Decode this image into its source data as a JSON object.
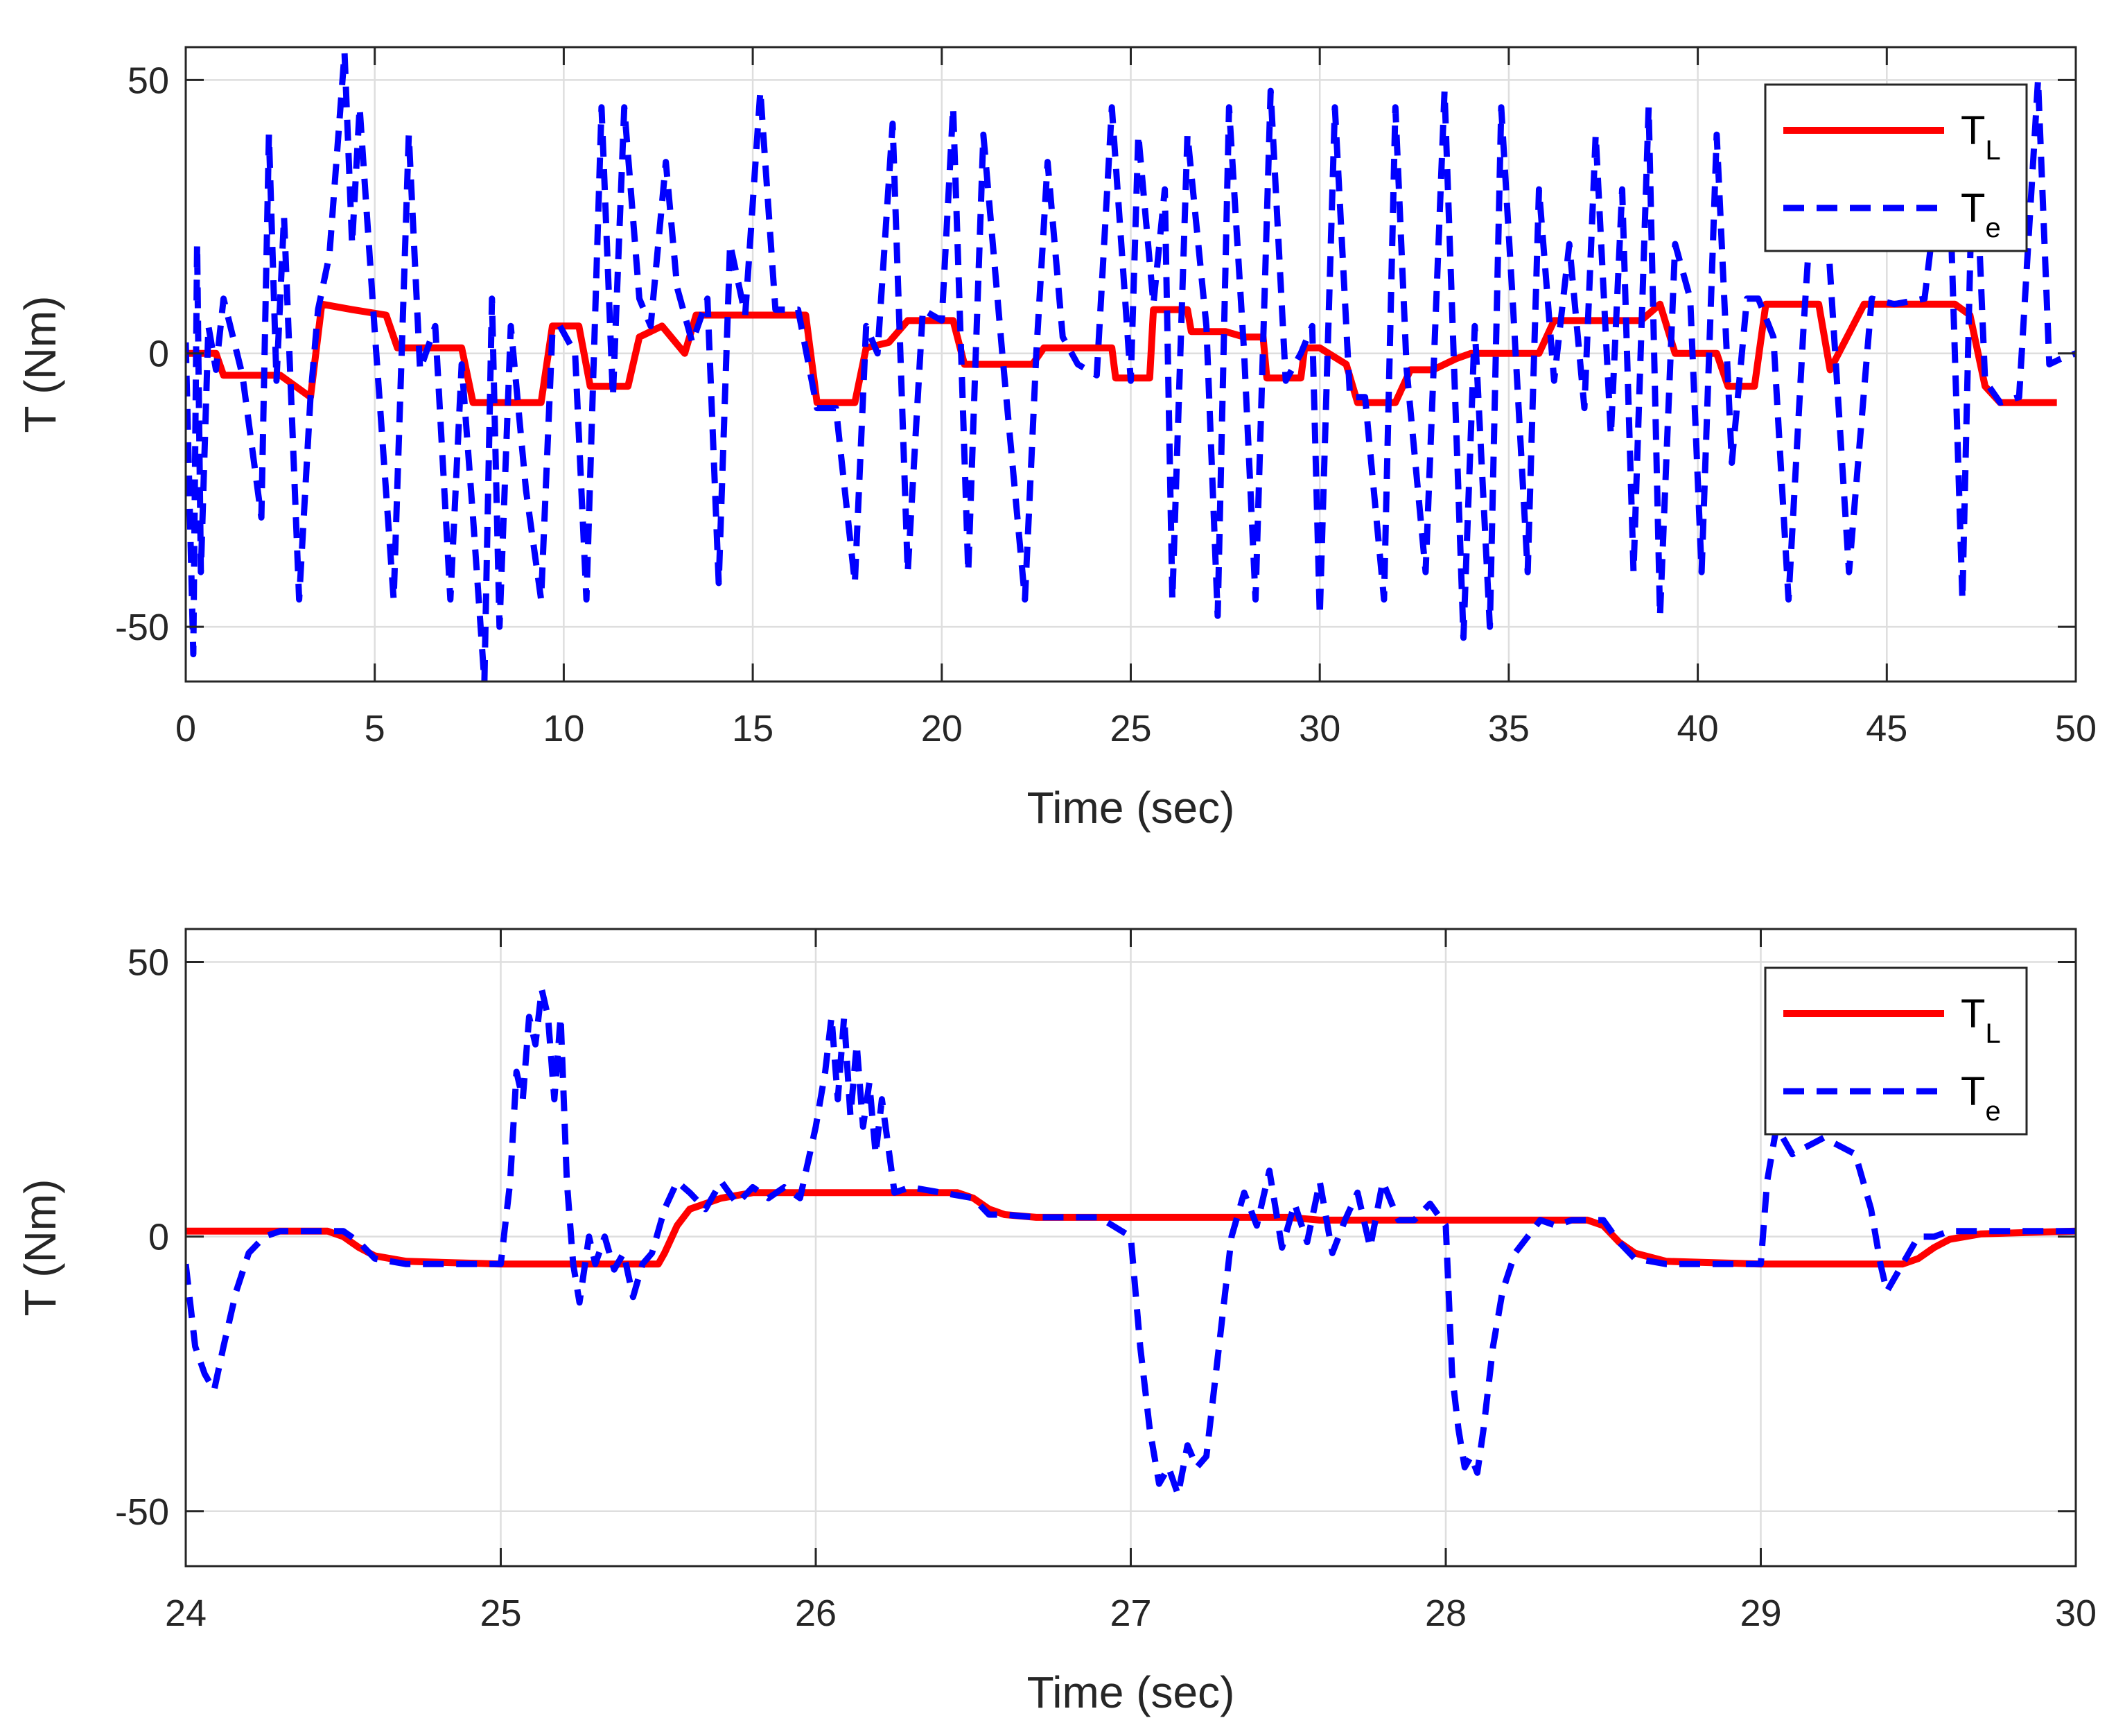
{
  "chart_data": [
    {
      "type": "line",
      "xlabel": "Time (sec)",
      "ylabel": "T (Nm)",
      "xlim": [
        0,
        50
      ],
      "ylim": [
        -60,
        56
      ],
      "xticks": [
        0,
        5,
        10,
        15,
        20,
        25,
        30,
        35,
        40,
        45,
        50
      ],
      "yticks": [
        -50,
        0,
        50
      ],
      "xtick_labels": [
        "0",
        "5",
        "10",
        "15",
        "20",
        "25",
        "30",
        "35",
        "40",
        "45",
        "50"
      ],
      "ytick_labels": [
        "-50",
        "0",
        "50"
      ],
      "grid": true,
      "legend_position": "top-right",
      "series": [
        {
          "name": "T_L",
          "legend_main": "T",
          "legend_sub": "L",
          "color": "#ff0000",
          "style": "solid",
          "x": [
            0,
            0.8,
            1.0,
            2.5,
            3.3,
            3.6,
            4.4,
            5.3,
            5.6,
            7.3,
            7.6,
            9.4,
            9.7,
            10.4,
            10.7,
            11.7,
            12.0,
            12.6,
            13.2,
            13.5,
            16.4,
            16.7,
            17.7,
            18.0,
            18.6,
            19.1,
            20.3,
            20.6,
            22.4,
            22.7,
            23.8,
            24.0,
            24.5,
            24.6,
            25.5,
            25.6,
            26.5,
            26.6,
            27.5,
            28.0,
            28.5,
            28.6,
            29.5,
            29.6,
            30.0,
            30.7,
            31.0,
            32.0,
            32.4,
            33.0,
            33.6,
            34.0,
            35.8,
            36.2,
            38.5,
            39.0,
            39.4,
            40.5,
            40.8,
            41.5,
            41.8,
            43.2,
            43.5,
            44.4,
            46.8,
            47.2,
            47.6,
            48.0,
            49.5
          ],
          "y": [
            0,
            0,
            -4,
            -4,
            -8,
            9,
            8,
            7,
            1,
            1,
            -9,
            -9,
            5,
            5,
            -6,
            -6,
            3,
            5,
            0,
            7,
            7,
            -9,
            -9,
            1,
            2,
            6,
            6,
            -2,
            -2,
            1,
            1,
            1,
            1,
            -4.5,
            -4.5,
            8,
            8,
            4,
            4,
            3,
            3,
            -4.5,
            -4.5,
            1,
            1,
            -2,
            -9,
            -9,
            -3,
            -3,
            -1,
            0,
            0,
            6,
            6,
            9,
            0,
            0,
            -6,
            -6,
            9,
            9,
            -3,
            9,
            9,
            7,
            -6,
            -9,
            -9
          ]
        },
        {
          "name": "T_e",
          "legend_main": "T",
          "legend_sub": "e",
          "color": "#0000ff",
          "style": "dashed",
          "x": [
            0,
            0.2,
            0.3,
            0.4,
            0.6,
            0.8,
            1.0,
            1.5,
            2.0,
            2.2,
            2.4,
            2.6,
            3.0,
            3.3,
            3.5,
            3.8,
            4.2,
            4.4,
            4.6,
            5.0,
            5.5,
            5.9,
            6.2,
            6.6,
            7.0,
            7.3,
            7.6,
            7.9,
            8.1,
            8.3,
            8.6,
            9.0,
            9.4,
            9.7,
            9.9,
            10.3,
            10.6,
            11.0,
            11.3,
            11.6,
            12.0,
            12.3,
            12.7,
            13.0,
            13.4,
            13.8,
            14.1,
            14.4,
            14.8,
            15.2,
            15.6,
            16.2,
            16.7,
            17.2,
            17.7,
            18.0,
            18.3,
            18.7,
            19.1,
            19.5,
            20.0,
            20.3,
            20.7,
            21.1,
            21.6,
            22.2,
            22.5,
            22.8,
            23.2,
            23.6,
            24.1,
            24.5,
            25.0,
            25.2,
            25.6,
            25.9,
            26.1,
            26.5,
            27.0,
            27.3,
            27.6,
            28.0,
            28.3,
            28.7,
            29.1,
            29.5,
            29.8,
            30.0,
            30.4,
            30.8,
            31.2,
            31.7,
            32.0,
            32.3,
            32.8,
            33.3,
            33.8,
            34.1,
            34.5,
            34.8,
            35.1,
            35.5,
            35.8,
            36.2,
            36.6,
            37.0,
            37.3,
            37.7,
            38.0,
            38.3,
            38.7,
            39.0,
            39.4,
            39.8,
            40.1,
            40.5,
            40.9,
            41.3,
            41.6,
            42.0,
            42.4,
            42.8,
            43.2,
            43.6,
            44.0,
            44.6,
            45.2,
            46.0,
            46.6,
            47.0,
            47.3,
            47.6,
            48.0,
            48.5,
            49.0,
            49.3,
            49.6,
            50.0
          ],
          "y": [
            2,
            -55,
            20,
            -40,
            5,
            -3,
            10,
            -4,
            -30,
            40,
            -5,
            25,
            -45,
            -8,
            8,
            18,
            55,
            20,
            45,
            4,
            -45,
            40,
            -3,
            5,
            -45,
            -2,
            -30,
            -60,
            10,
            -50,
            5,
            -25,
            -45,
            4,
            5,
            0,
            -45,
            45,
            -8,
            45,
            10,
            5,
            35,
            12,
            2,
            10,
            -42,
            20,
            7,
            48,
            8,
            8,
            -10,
            -10,
            -42,
            5,
            0,
            42,
            -40,
            8,
            6,
            45,
            -40,
            40,
            0,
            -45,
            0,
            35,
            3,
            -2,
            -4,
            45,
            -5,
            40,
            9,
            30,
            -45,
            40,
            5,
            -48,
            45,
            0,
            -45,
            48,
            -5,
            0,
            5,
            -48,
            45,
            -8,
            -8,
            -45,
            45,
            -3,
            -40,
            48,
            -52,
            5,
            -50,
            45,
            10,
            -40,
            30,
            -5,
            20,
            -10,
            40,
            -15,
            30,
            -40,
            45,
            -48,
            20,
            10,
            -40,
            40,
            -20,
            10,
            10,
            3,
            -45,
            5,
            48,
            4,
            -40,
            10,
            9,
            10,
            45,
            -45,
            45,
            -5,
            -9,
            -8,
            50,
            -2,
            -1,
            0
          ]
        }
      ]
    },
    {
      "type": "line",
      "xlabel": "Time (sec)",
      "ylabel": "T (Nm)",
      "xlim": [
        24,
        30
      ],
      "ylim": [
        -60,
        56
      ],
      "xticks": [
        24,
        25,
        26,
        27,
        28,
        29,
        30
      ],
      "yticks": [
        -50,
        0,
        50
      ],
      "xtick_labels": [
        "24",
        "25",
        "26",
        "27",
        "28",
        "29",
        "30"
      ],
      "ytick_labels": [
        "-50",
        "0",
        "50"
      ],
      "grid": true,
      "legend_position": "top-right",
      "series": [
        {
          "name": "T_L",
          "legend_main": "T",
          "legend_sub": "L",
          "color": "#ff0000",
          "style": "solid",
          "x": [
            24.0,
            24.45,
            24.5,
            24.55,
            24.6,
            24.7,
            25.0,
            25.5,
            25.52,
            25.56,
            25.6,
            25.7,
            25.8,
            26.0,
            26.45,
            26.5,
            26.55,
            26.6,
            26.7,
            27.0,
            27.5,
            27.6,
            28.0,
            28.45,
            28.5,
            28.55,
            28.6,
            28.7,
            29.0,
            29.45,
            29.5,
            29.55,
            29.6,
            29.7,
            30.0
          ],
          "y": [
            1,
            1,
            0,
            -2,
            -3.5,
            -4.5,
            -5,
            -5,
            -3,
            2,
            5,
            7,
            8,
            8,
            8,
            7,
            5,
            4,
            3.5,
            3.5,
            3.5,
            3,
            3,
            3,
            2,
            -1,
            -3,
            -4.5,
            -5,
            -5,
            -4,
            -2,
            -0.5,
            0.5,
            1
          ]
        },
        {
          "name": "T_e",
          "legend_main": "T",
          "legend_sub": "e",
          "color": "#0000ff",
          "style": "dashed",
          "x": [
            24.0,
            24.03,
            24.06,
            24.09,
            24.12,
            24.16,
            24.2,
            24.25,
            24.3,
            24.4,
            24.5,
            24.55,
            24.6,
            24.7,
            24.8,
            24.9,
            25.0,
            25.03,
            25.05,
            25.07,
            25.09,
            25.11,
            25.13,
            25.15,
            25.17,
            25.19,
            25.21,
            25.23,
            25.25,
            25.28,
            25.3,
            25.33,
            25.36,
            25.39,
            25.42,
            25.45,
            25.48,
            25.52,
            25.56,
            25.6,
            25.65,
            25.7,
            25.75,
            25.8,
            25.85,
            25.9,
            25.95,
            26.0,
            26.03,
            26.05,
            26.07,
            26.09,
            26.11,
            26.13,
            26.15,
            26.17,
            26.19,
            26.21,
            26.25,
            26.3,
            26.4,
            26.5,
            26.55,
            26.6,
            26.7,
            26.8,
            26.9,
            27.0,
            27.03,
            27.06,
            27.09,
            27.12,
            27.15,
            27.18,
            27.21,
            27.24,
            27.28,
            27.32,
            27.36,
            27.4,
            27.44,
            27.48,
            27.52,
            27.56,
            27.6,
            27.64,
            27.68,
            27.72,
            27.76,
            27.8,
            27.85,
            27.9,
            27.95,
            28.0,
            28.02,
            28.04,
            28.06,
            28.08,
            28.1,
            28.12,
            28.15,
            28.18,
            28.22,
            28.26,
            28.3,
            28.35,
            28.4,
            28.45,
            28.5,
            28.55,
            28.6,
            28.7,
            28.8,
            28.9,
            29.0,
            29.02,
            29.05,
            29.1,
            29.2,
            29.3,
            29.35,
            29.38,
            29.4,
            29.45,
            29.5,
            29.55,
            29.6,
            29.7,
            29.8,
            29.9,
            30.0
          ],
          "y": [
            -5,
            -20,
            -25,
            -28,
            -20,
            -10,
            -3,
            0,
            1,
            1,
            1,
            -1,
            -4,
            -5,
            -5,
            -5,
            -5,
            10,
            30,
            25,
            40,
            35,
            45,
            40,
            25,
            40,
            10,
            -5,
            -12,
            0,
            -5,
            0,
            -6,
            -3,
            -11,
            -5,
            -3,
            5,
            10,
            8,
            5,
            10,
            6,
            9,
            7,
            9,
            7,
            20,
            30,
            40,
            25,
            40,
            22,
            35,
            20,
            28,
            15,
            25,
            8,
            9,
            8,
            7,
            4,
            4,
            3.5,
            3.5,
            3.5,
            0,
            -20,
            -35,
            -45,
            -42,
            -47,
            -38,
            -42,
            -40,
            -20,
            0,
            8,
            2,
            12,
            -2,
            6,
            -1,
            10,
            -3,
            3,
            8,
            -2,
            10,
            3,
            3,
            6,
            2,
            -25,
            -35,
            -42,
            -40,
            -43,
            -35,
            -20,
            -10,
            -3,
            0,
            3,
            2,
            3,
            3,
            3,
            -1,
            -4,
            -5,
            -5,
            -5,
            -5,
            10,
            20,
            15,
            18,
            15,
            5,
            -5,
            -10,
            -5,
            0,
            0,
            1,
            1,
            1,
            1,
            1
          ]
        }
      ]
    }
  ]
}
